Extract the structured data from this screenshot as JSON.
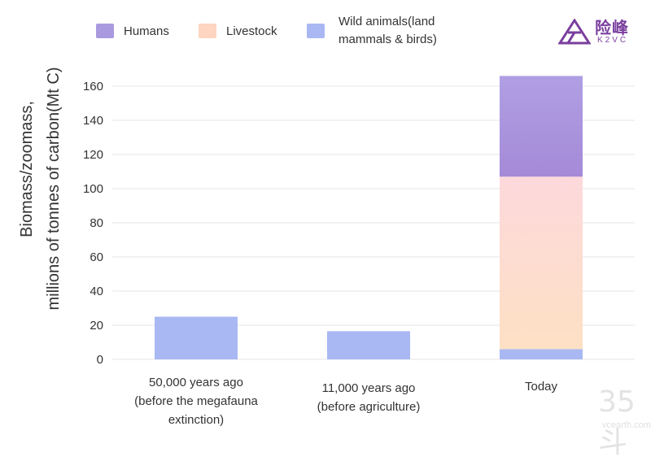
{
  "legend": {
    "humans": "Humans",
    "livestock": "Livestock",
    "wild_line1": "Wild animals(land",
    "wild_line2": "mammals & birds)"
  },
  "colors": {
    "humans_top": "#b09fe3",
    "humans_bottom": "#a58ad8",
    "livestock_top": "#fdd9dc",
    "livestock_bottom": "#fde0c4",
    "wild": "#a9b8f3",
    "grid": "#e6e6e6",
    "logo": "#7a3f9e"
  },
  "logo": {
    "cn": "险峰",
    "en": "K2VC"
  },
  "watermark": {
    "num": "35斗",
    "url": "vcearth.com"
  },
  "chart_data": {
    "type": "bar",
    "stacked": true,
    "ylabel_line1": "Biomass/zoomass,",
    "ylabel_line2": "millions of tonnes of carbon(Mt C)",
    "xlabel": "",
    "ylim": [
      0,
      170
    ],
    "yticks": [
      0,
      20,
      40,
      60,
      80,
      100,
      120,
      140,
      160
    ],
    "categories": [
      [
        "50,000 years ago",
        "(before the megafauna",
        "extinction)"
      ],
      [
        "11,000 years ago",
        "(before agriculture)"
      ],
      [
        "Today"
      ]
    ],
    "series": [
      {
        "name": "Wild animals(land mammals & birds)",
        "values": [
          25,
          16.5,
          6
        ]
      },
      {
        "name": "Livestock",
        "values": [
          0,
          0,
          101
        ]
      },
      {
        "name": "Humans",
        "values": [
          0,
          0,
          59
        ]
      }
    ]
  }
}
